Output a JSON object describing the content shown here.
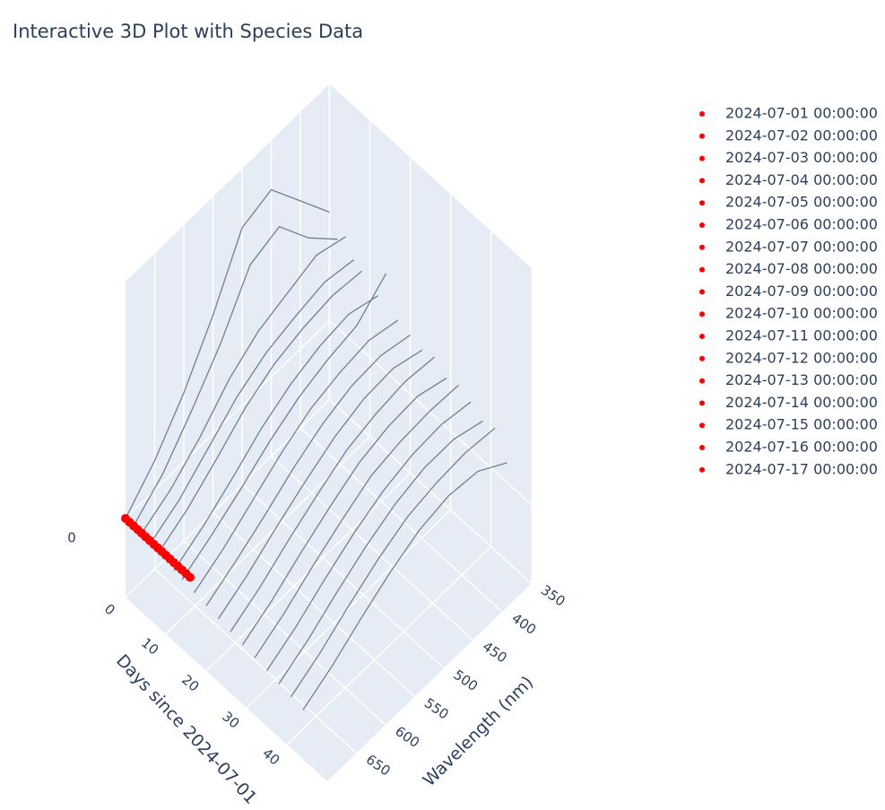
{
  "chart_data": {
    "type": "scatter3d",
    "title": "Interactive 3D Plot with Species Data",
    "xaxis_title": "Days since 2024-07-01",
    "yaxis_title": "Wavelength (nm)",
    "xlim": [
      0,
      50
    ],
    "xticks": [
      0,
      10,
      20,
      30,
      40
    ],
    "ylim": [
      350,
      700
    ],
    "yticks": [
      350,
      400,
      450,
      500,
      550,
      600,
      650
    ],
    "zlim": [
      -0.4,
      1.2
    ],
    "zticks": [
      0
    ],
    "lines": {
      "color": "#708090",
      "wavelengths": [
        350,
        400,
        450,
        500,
        550,
        600,
        650,
        700
      ],
      "traces": [
        {
          "day": 0,
          "values": [
            0.55,
            0.75,
            0.95,
            0.9,
            0.6,
            0.35,
            0.15,
            0.0
          ]
        },
        {
          "day": 2,
          "values": [
            0.45,
            0.6,
            0.8,
            0.75,
            0.5,
            0.3,
            0.12,
            0.0
          ]
        },
        {
          "day": 4,
          "values": [
            0.5,
            0.55,
            0.5,
            0.45,
            0.35,
            0.2,
            0.08,
            0.0
          ]
        },
        {
          "day": 6,
          "values": [
            0.42,
            0.45,
            0.42,
            0.38,
            0.3,
            0.18,
            0.06,
            -0.02
          ]
        },
        {
          "day": 8,
          "values": [
            0.4,
            0.42,
            0.4,
            0.36,
            0.28,
            0.16,
            0.05,
            -0.03
          ]
        },
        {
          "day": 12,
          "values": [
            0.35,
            0.4,
            0.38,
            0.33,
            0.25,
            0.14,
            0.04,
            -0.04
          ]
        },
        {
          "day": 14,
          "values": [
            0.5,
            0.38,
            0.35,
            0.3,
            0.22,
            0.12,
            0.03,
            -0.05
          ]
        },
        {
          "day": 17,
          "values": [
            0.32,
            0.36,
            0.34,
            0.3,
            0.22,
            0.12,
            0.02,
            -0.06
          ]
        },
        {
          "day": 20,
          "values": [
            0.3,
            0.34,
            0.33,
            0.28,
            0.2,
            0.1,
            0.01,
            -0.07
          ]
        },
        {
          "day": 23,
          "values": [
            0.28,
            0.33,
            0.32,
            0.27,
            0.19,
            0.1,
            0.0,
            -0.08
          ]
        },
        {
          "day": 26,
          "values": [
            0.3,
            0.32,
            0.3,
            0.26,
            0.18,
            0.09,
            -0.01,
            -0.09
          ]
        },
        {
          "day": 29,
          "values": [
            0.25,
            0.3,
            0.29,
            0.25,
            0.17,
            0.08,
            -0.02,
            -0.1
          ]
        },
        {
          "day": 32,
          "values": [
            0.27,
            0.28,
            0.27,
            0.24,
            0.16,
            0.07,
            -0.03,
            -0.11
          ]
        },
        {
          "day": 35,
          "values": [
            0.24,
            0.27,
            0.26,
            0.22,
            0.15,
            0.06,
            -0.04,
            -0.12
          ]
        },
        {
          "day": 38,
          "values": [
            0.2,
            0.25,
            0.25,
            0.21,
            0.14,
            0.05,
            -0.05,
            -0.13
          ]
        },
        {
          "day": 41,
          "values": [
            0.22,
            0.24,
            0.23,
            0.2,
            0.13,
            0.04,
            -0.06,
            -0.14
          ]
        },
        {
          "day": 44,
          "values": [
            0.1,
            0.2,
            0.22,
            0.19,
            0.12,
            0.03,
            -0.07,
            -0.15
          ]
        }
      ]
    },
    "series": [
      {
        "name": "2024-07-01 00:00:00",
        "color": "#ff0000",
        "x": [
          0
        ],
        "y": [
          700
        ],
        "z": [
          0
        ]
      },
      {
        "name": "2024-07-02 00:00:00",
        "color": "#ff0000",
        "x": [
          1
        ],
        "y": [
          700
        ],
        "z": [
          0
        ]
      },
      {
        "name": "2024-07-03 00:00:00",
        "color": "#ff0000",
        "x": [
          2
        ],
        "y": [
          700
        ],
        "z": [
          0
        ]
      },
      {
        "name": "2024-07-04 00:00:00",
        "color": "#ff0000",
        "x": [
          3
        ],
        "y": [
          700
        ],
        "z": [
          0
        ]
      },
      {
        "name": "2024-07-05 00:00:00",
        "color": "#ff0000",
        "x": [
          4
        ],
        "y": [
          700
        ],
        "z": [
          0
        ]
      },
      {
        "name": "2024-07-06 00:00:00",
        "color": "#ff0000",
        "x": [
          5
        ],
        "y": [
          700
        ],
        "z": [
          0
        ]
      },
      {
        "name": "2024-07-07 00:00:00",
        "color": "#ff0000",
        "x": [
          6
        ],
        "y": [
          700
        ],
        "z": [
          0
        ]
      },
      {
        "name": "2024-07-08 00:00:00",
        "color": "#ff0000",
        "x": [
          7
        ],
        "y": [
          700
        ],
        "z": [
          0
        ]
      },
      {
        "name": "2024-07-09 00:00:00",
        "color": "#ff0000",
        "x": [
          8
        ],
        "y": [
          700
        ],
        "z": [
          0
        ]
      },
      {
        "name": "2024-07-10 00:00:00",
        "color": "#ff0000",
        "x": [
          9
        ],
        "y": [
          700
        ],
        "z": [
          0
        ]
      },
      {
        "name": "2024-07-11 00:00:00",
        "color": "#ff0000",
        "x": [
          10
        ],
        "y": [
          700
        ],
        "z": [
          0
        ]
      },
      {
        "name": "2024-07-12 00:00:00",
        "color": "#ff0000",
        "x": [
          11
        ],
        "y": [
          700
        ],
        "z": [
          0
        ]
      },
      {
        "name": "2024-07-13 00:00:00",
        "color": "#ff0000",
        "x": [
          12
        ],
        "y": [
          700
        ],
        "z": [
          0
        ]
      },
      {
        "name": "2024-07-14 00:00:00",
        "color": "#ff0000",
        "x": [
          13
        ],
        "y": [
          700
        ],
        "z": [
          0
        ]
      },
      {
        "name": "2024-07-15 00:00:00",
        "color": "#ff0000",
        "x": [
          14
        ],
        "y": [
          700
        ],
        "z": [
          0
        ]
      },
      {
        "name": "2024-07-16 00:00:00",
        "color": "#ff0000",
        "x": [
          15
        ],
        "y": [
          700
        ],
        "z": [
          0
        ]
      },
      {
        "name": "2024-07-17 00:00:00",
        "color": "#ff0000",
        "x": [
          16
        ],
        "y": [
          700
        ],
        "z": [
          0
        ]
      }
    ]
  }
}
